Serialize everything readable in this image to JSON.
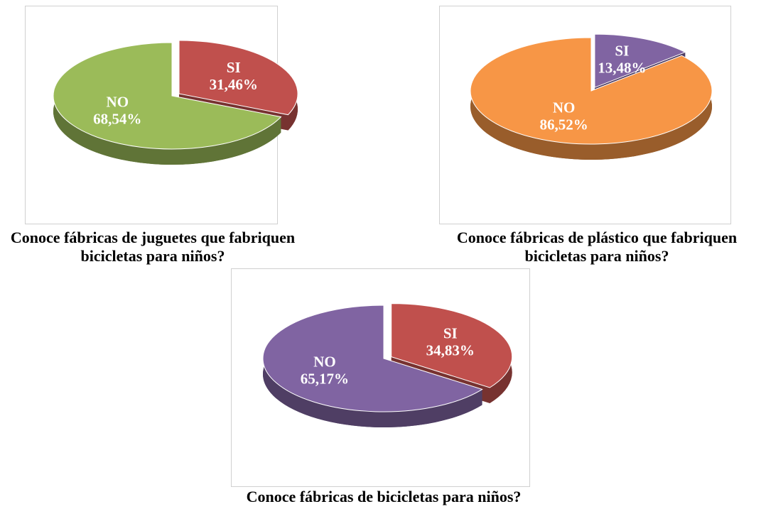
{
  "chart_data": [
    {
      "type": "pie",
      "title": "Conoce fábricas de juguetes que fabriquen bicicletas para niños?",
      "categories": [
        "SI",
        "NO"
      ],
      "values": [
        31.46,
        68.54
      ],
      "value_labels": [
        "31,46%",
        "68,54%"
      ],
      "colors": [
        "#c0504d",
        "#9bbb59"
      ]
    },
    {
      "type": "pie",
      "title": "Conoce fábricas de plástico que fabriquen bicicletas para niños?",
      "categories": [
        "SI",
        "NO"
      ],
      "values": [
        13.48,
        86.52
      ],
      "value_labels": [
        "13,48%",
        "86,52%"
      ],
      "colors": [
        "#8064a2",
        "#f79646"
      ]
    },
    {
      "type": "pie",
      "title": "Conoce fábricas de bicicletas para niños?",
      "categories": [
        "SI",
        "NO"
      ],
      "values": [
        34.83,
        65.17
      ],
      "value_labels": [
        "34,83%",
        "65,17%"
      ],
      "colors": [
        "#c0504d",
        "#8064a2"
      ]
    }
  ]
}
